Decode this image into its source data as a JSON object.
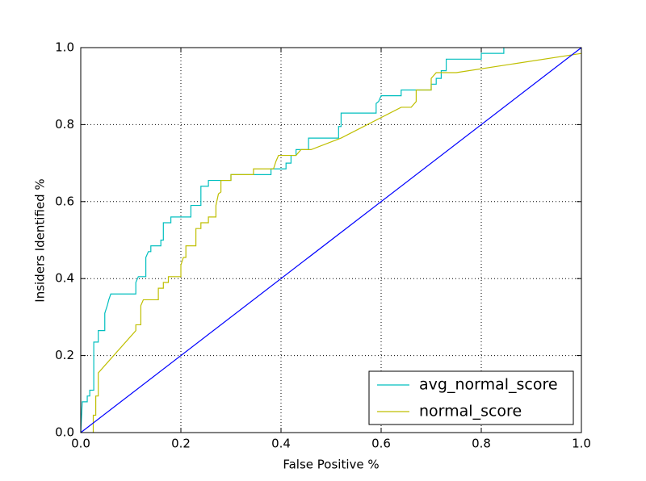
{
  "chart_data": {
    "type": "line",
    "xlabel": "False Positive %",
    "ylabel": "Insiders Identified %",
    "xlim": [
      0,
      1
    ],
    "ylim": [
      0,
      1
    ],
    "xticks": [
      {
        "value": 0,
        "label": "0.0"
      },
      0.2,
      0.4,
      0.6,
      0.8,
      {
        "value": 1,
        "label": "1.0"
      }
    ],
    "yticks": [
      {
        "value": 0,
        "label": "0.0"
      },
      0.2,
      0.4,
      0.6,
      0.8,
      {
        "value": 1,
        "label": "1.0"
      }
    ],
    "grid": true,
    "legend": "lower right",
    "series": [
      {
        "name": "avg_normal_score",
        "color": "#00bfbf",
        "x": [
          0,
          0.003,
          0.013,
          0.013,
          0.018,
          0.018,
          0.026,
          0.026,
          0.035,
          0.035,
          0.048,
          0.048,
          0.053,
          0.056,
          0.06,
          0.11,
          0.11,
          0.115,
          0.13,
          0.13,
          0.135,
          0.14,
          0.14,
          0.16,
          0.16,
          0.165,
          0.165,
          0.18,
          0.18,
          0.22,
          0.22,
          0.24,
          0.24,
          0.255,
          0.255,
          0.3,
          0.3,
          0.38,
          0.38,
          0.41,
          0.41,
          0.42,
          0.42,
          0.43,
          0.43,
          0.455,
          0.455,
          0.515,
          0.515,
          0.52,
          0.52,
          0.59,
          0.59,
          0.595,
          0.6,
          0.64,
          0.64,
          0.7,
          0.7,
          0.71,
          0.71,
          0.72,
          0.72,
          0.73,
          0.73,
          0.8,
          0.8,
          0.845,
          0.845
        ],
        "values": [
          0,
          0.08,
          0.08,
          0.095,
          0.095,
          0.11,
          0.11,
          0.235,
          0.235,
          0.265,
          0.265,
          0.31,
          0.33,
          0.345,
          0.36,
          0.36,
          0.39,
          0.405,
          0.405,
          0.455,
          0.47,
          0.47,
          0.485,
          0.485,
          0.5,
          0.5,
          0.545,
          0.545,
          0.56,
          0.56,
          0.59,
          0.59,
          0.64,
          0.64,
          0.655,
          0.655,
          0.67,
          0.67,
          0.685,
          0.685,
          0.7,
          0.7,
          0.72,
          0.72,
          0.735,
          0.735,
          0.765,
          0.765,
          0.795,
          0.795,
          0.83,
          0.83,
          0.855,
          0.86,
          0.875,
          0.875,
          0.89,
          0.89,
          0.905,
          0.905,
          0.92,
          0.92,
          0.94,
          0.94,
          0.97,
          0.97,
          0.985,
          0.985,
          1
        ]
      },
      {
        "name": "normal_score",
        "color": "#bfbf00",
        "x": [
          0.025,
          0.025,
          0.03,
          0.03,
          0.035,
          0.035,
          0.11,
          0.11,
          0.12,
          0.12,
          0.125,
          0.155,
          0.155,
          0.165,
          0.165,
          0.175,
          0.175,
          0.2,
          0.2,
          0.205,
          0.21,
          0.21,
          0.23,
          0.23,
          0.24,
          0.24,
          0.255,
          0.255,
          0.27,
          0.27,
          0.275,
          0.28,
          0.28,
          0.3,
          0.3,
          0.345,
          0.345,
          0.385,
          0.39,
          0.395,
          0.43,
          0.44,
          0.46,
          0.52,
          0.64,
          0.66,
          0.67,
          0.67,
          0.7,
          0.7,
          0.71,
          0.75,
          1
        ],
        "values": [
          0,
          0.045,
          0.045,
          0.095,
          0.095,
          0.155,
          0.265,
          0.28,
          0.28,
          0.33,
          0.345,
          0.345,
          0.375,
          0.375,
          0.39,
          0.39,
          0.405,
          0.405,
          0.435,
          0.455,
          0.455,
          0.485,
          0.485,
          0.53,
          0.53,
          0.545,
          0.545,
          0.56,
          0.56,
          0.59,
          0.62,
          0.625,
          0.655,
          0.655,
          0.67,
          0.67,
          0.685,
          0.685,
          0.705,
          0.72,
          0.72,
          0.735,
          0.735,
          0.765,
          0.845,
          0.845,
          0.86,
          0.89,
          0.89,
          0.92,
          0.935,
          0.935,
          0.985
        ]
      },
      {
        "color": "#0000ff",
        "x": [
          0,
          1
        ],
        "values": [
          0,
          1
        ]
      }
    ]
  }
}
